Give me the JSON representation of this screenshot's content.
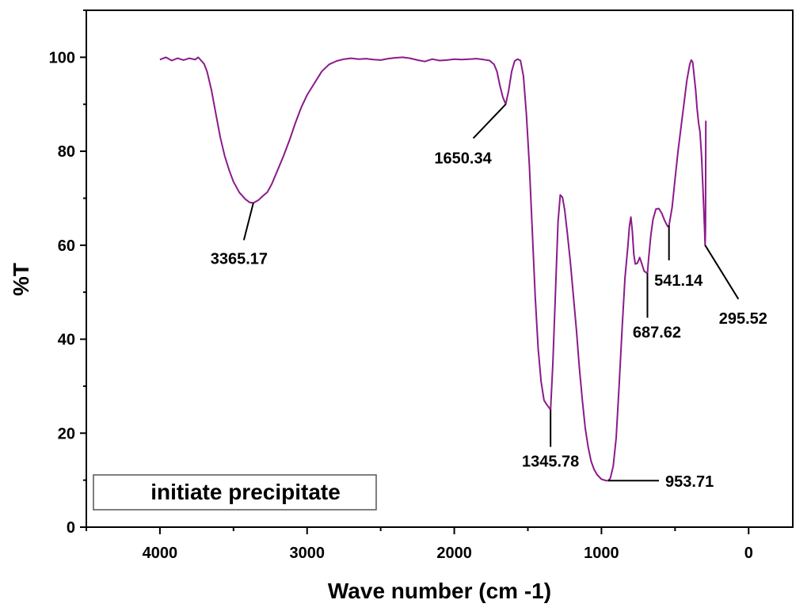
{
  "chart_data": {
    "type": "line",
    "title": "",
    "xlabel": "Wave number (cm -1)",
    "ylabel": "%T",
    "xlim": [
      4500,
      -300
    ],
    "ylim": [
      0,
      110
    ],
    "x_reversed": true,
    "x_ticks": [
      4000,
      3000,
      2000,
      1000,
      0
    ],
    "y_ticks": [
      0,
      20,
      40,
      60,
      80,
      100
    ],
    "grid": false,
    "legend": {
      "position": "bottom-left",
      "entries": [
        "initiate precipitate"
      ]
    },
    "series_color": "#8B1A8B",
    "series": [
      {
        "name": "initiate precipitate",
        "points": [
          [
            4000,
            99.5
          ],
          [
            3960,
            100
          ],
          [
            3920,
            99.3
          ],
          [
            3880,
            99.8
          ],
          [
            3840,
            99.4
          ],
          [
            3800,
            99.8
          ],
          [
            3760,
            99.5
          ],
          [
            3740,
            100
          ],
          [
            3720,
            99.3
          ],
          [
            3700,
            98.6
          ],
          [
            3680,
            97
          ],
          [
            3650,
            93
          ],
          [
            3620,
            88
          ],
          [
            3590,
            83
          ],
          [
            3560,
            79
          ],
          [
            3530,
            76
          ],
          [
            3500,
            73.5
          ],
          [
            3460,
            71.2
          ],
          [
            3420,
            69.8
          ],
          [
            3390,
            69.1
          ],
          [
            3365.17,
            69
          ],
          [
            3330,
            69.6
          ],
          [
            3300,
            70.5
          ],
          [
            3270,
            71.3
          ],
          [
            3240,
            73
          ],
          [
            3200,
            76
          ],
          [
            3160,
            79
          ],
          [
            3120,
            82.3
          ],
          [
            3080,
            86
          ],
          [
            3040,
            89.3
          ],
          [
            3000,
            92
          ],
          [
            2960,
            94
          ],
          [
            2900,
            97
          ],
          [
            2850,
            98.5
          ],
          [
            2800,
            99.2
          ],
          [
            2750,
            99.6
          ],
          [
            2700,
            99.8
          ],
          [
            2650,
            99.6
          ],
          [
            2600,
            99.7
          ],
          [
            2550,
            99.5
          ],
          [
            2500,
            99.4
          ],
          [
            2450,
            99.7
          ],
          [
            2400,
            99.9
          ],
          [
            2350,
            100
          ],
          [
            2300,
            99.8
          ],
          [
            2250,
            99.4
          ],
          [
            2200,
            99.1
          ],
          [
            2150,
            99.6
          ],
          [
            2100,
            99.3
          ],
          [
            2050,
            99.4
          ],
          [
            2000,
            99.6
          ],
          [
            1950,
            99.5
          ],
          [
            1900,
            99.6
          ],
          [
            1850,
            99.7
          ],
          [
            1800,
            99.5
          ],
          [
            1760,
            99.3
          ],
          [
            1730,
            98.5
          ],
          [
            1710,
            97
          ],
          [
            1690,
            94
          ],
          [
            1670,
            91.5
          ],
          [
            1650.34,
            90
          ],
          [
            1630,
            93
          ],
          [
            1610,
            97
          ],
          [
            1590,
            99.2
          ],
          [
            1570,
            99.6
          ],
          [
            1550,
            99.3
          ],
          [
            1530,
            96
          ],
          [
            1510,
            88
          ],
          [
            1490,
            77
          ],
          [
            1470,
            63
          ],
          [
            1450,
            49
          ],
          [
            1430,
            38
          ],
          [
            1410,
            31
          ],
          [
            1390,
            27
          ],
          [
            1370,
            26
          ],
          [
            1345.78,
            25
          ],
          [
            1330,
            35
          ],
          [
            1310,
            52
          ],
          [
            1295,
            65
          ],
          [
            1280,
            70.7
          ],
          [
            1265,
            70.2
          ],
          [
            1250,
            67.5
          ],
          [
            1230,
            62
          ],
          [
            1210,
            56
          ],
          [
            1190,
            49
          ],
          [
            1170,
            42
          ],
          [
            1150,
            34
          ],
          [
            1130,
            27
          ],
          [
            1110,
            21
          ],
          [
            1090,
            17
          ],
          [
            1070,
            14
          ],
          [
            1050,
            12.3
          ],
          [
            1030,
            11.2
          ],
          [
            1000,
            10.2
          ],
          [
            970,
            9.9
          ],
          [
            953.71,
            9.9
          ],
          [
            940,
            10.4
          ],
          [
            920,
            13
          ],
          [
            900,
            19
          ],
          [
            880,
            30
          ],
          [
            860,
            42
          ],
          [
            840,
            53
          ],
          [
            820,
            60
          ],
          [
            810,
            64
          ],
          [
            800,
            66
          ],
          [
            790,
            63
          ],
          [
            780,
            58
          ],
          [
            770,
            56
          ],
          [
            755,
            56.2
          ],
          [
            740,
            57.4
          ],
          [
            725,
            56
          ],
          [
            710,
            54.5
          ],
          [
            687.62,
            54
          ],
          [
            680,
            57
          ],
          [
            665,
            62
          ],
          [
            650,
            65.5
          ],
          [
            630,
            67.7
          ],
          [
            610,
            67.8
          ],
          [
            590,
            66.8
          ],
          [
            570,
            65.2
          ],
          [
            550,
            64
          ],
          [
            541.14,
            64.2
          ],
          [
            520,
            68
          ],
          [
            500,
            74
          ],
          [
            480,
            80
          ],
          [
            460,
            85
          ],
          [
            440,
            90
          ],
          [
            420,
            95
          ],
          [
            400,
            98.5
          ],
          [
            390,
            99.4
          ],
          [
            380,
            99
          ],
          [
            370,
            96
          ],
          [
            360,
            93
          ],
          [
            350,
            89
          ],
          [
            340,
            86
          ],
          [
            330,
            84
          ],
          [
            320,
            79
          ],
          [
            310,
            72
          ],
          [
            300,
            64
          ],
          [
            295.52,
            60
          ],
          [
            293,
            64
          ],
          [
            291,
            86.5
          ]
        ]
      }
    ],
    "annotations": [
      {
        "label": "3365.17",
        "x": 3365.17,
        "y": 69
      },
      {
        "label": "1650.34",
        "x": 1650.34,
        "y": 90
      },
      {
        "label": "1345.78",
        "x": 1345.78,
        "y": 25
      },
      {
        "label": "953.71",
        "x": 953.71,
        "y": 9.9
      },
      {
        "label": "687.62",
        "x": 687.62,
        "y": 54
      },
      {
        "label": "541.14",
        "x": 541.14,
        "y": 64.2
      },
      {
        "label": "295.52",
        "x": 295.52,
        "y": 60
      }
    ]
  }
}
